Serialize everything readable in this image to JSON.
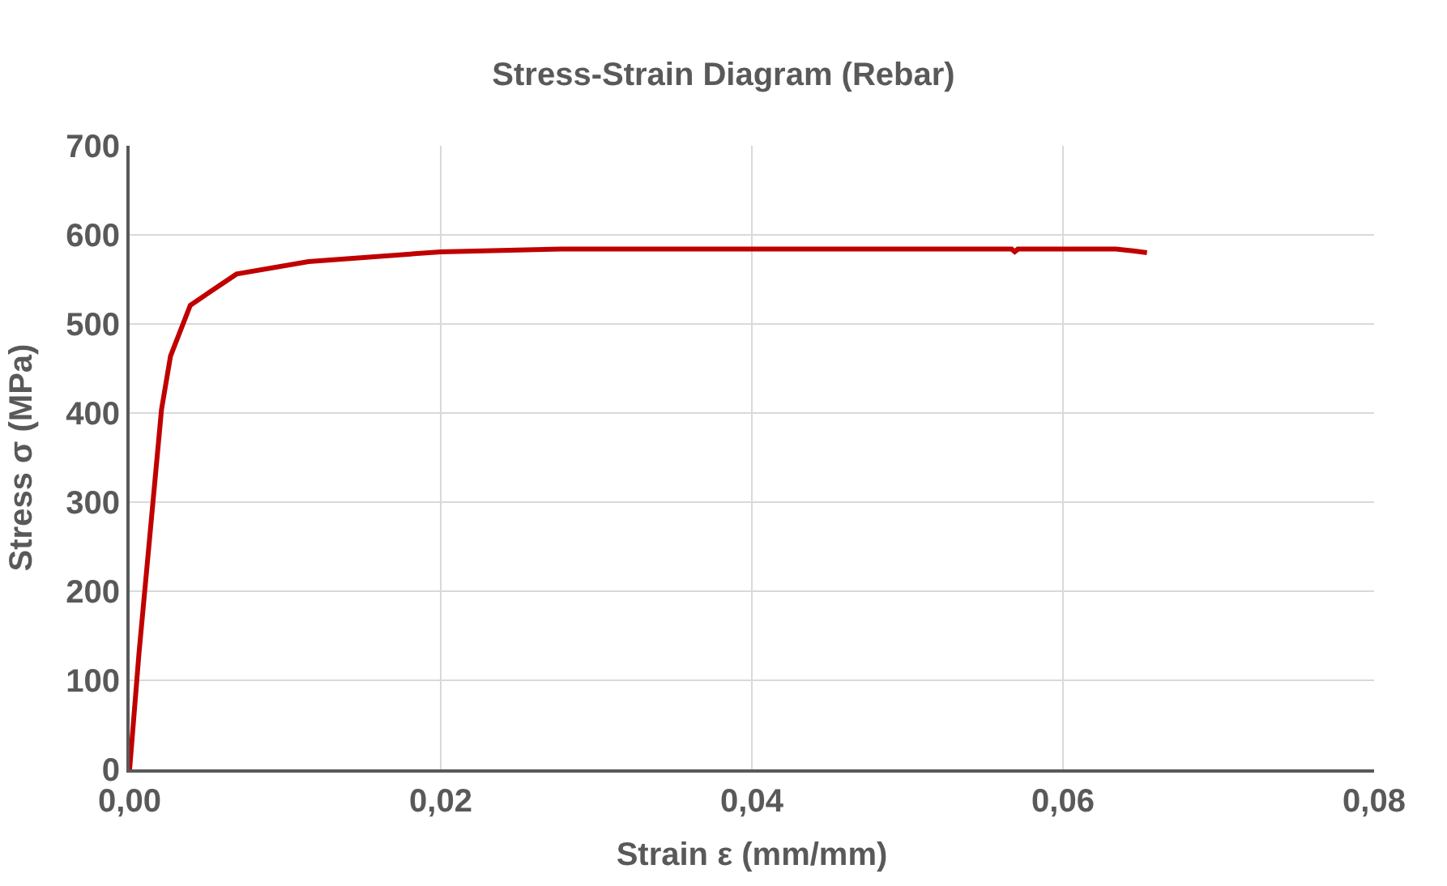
{
  "chart_data": {
    "type": "line",
    "title": "Stress-Strain Diagram (Rebar)",
    "xlabel": "Strain ε (mm/mm)",
    "ylabel": "Stress σ (MPa)",
    "x": [
      0,
      0.0006,
      0.00205,
      0.00263,
      0.0039,
      0.00687,
      0.0115,
      0.02,
      0.0277,
      0.04,
      0.0567,
      0.0569,
      0.0571,
      0.0634,
      0.0645,
      0.0654
    ],
    "series": [
      {
        "color": "#c00000",
        "values": [
          0,
          130,
          404,
          464,
          521,
          556,
          570,
          581,
          584,
          584,
          584,
          581,
          584,
          584,
          582,
          580
        ]
      }
    ],
    "xlim": [
      0,
      0.08
    ],
    "xticks": [
      {
        "value": 0,
        "label": "0,00"
      },
      {
        "value": 0.02,
        "label": "0,02"
      },
      {
        "value": 0.04,
        "label": "0,04"
      },
      {
        "value": 0.06,
        "label": "0,06"
      },
      {
        "value": 0.08,
        "label": "0,08"
      }
    ],
    "ylim": [
      0,
      700
    ],
    "yticks": [
      0,
      100,
      200,
      300,
      400,
      500,
      600,
      700
    ],
    "grid": true,
    "marker": "none",
    "line_style": "solid"
  }
}
